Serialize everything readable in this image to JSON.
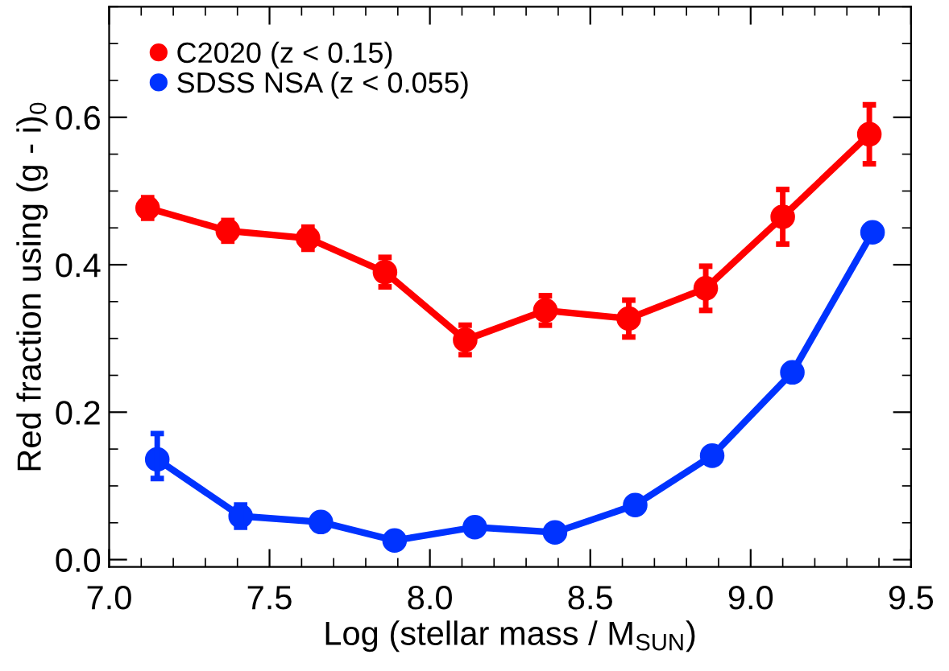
{
  "chart_data": {
    "type": "line",
    "xlabel": "Log (stellar mass / M$_{SUN}$)",
    "ylabel": "Red fraction using (g - i)$_{0}$",
    "xlim": [
      7.0,
      9.5
    ],
    "xticks": [
      {
        "value": 7.0,
        "label": "7.0"
      },
      7.5,
      {
        "value": 8.0,
        "label": "8.0"
      },
      8.5,
      {
        "value": 9.0,
        "label": "9.0"
      },
      9.5
    ],
    "ylim": [
      -0.01,
      0.75
    ],
    "yticks": [
      {
        "value": 0.0,
        "label": "0.0"
      },
      0.2,
      0.4,
      0.6
    ],
    "grid": false,
    "legend": "top left",
    "marker": "circle",
    "line_style": "solid",
    "series": [
      {
        "name": "C2020 (z < 0.15)",
        "color": "#ff0000",
        "x": [
          7.12,
          7.37,
          7.62,
          7.86,
          8.11,
          8.36,
          8.62,
          8.86,
          9.1,
          9.37
        ],
        "values": [
          0.477,
          0.446,
          0.436,
          0.39,
          0.298,
          0.338,
          0.327,
          0.368,
          0.465,
          0.577
        ],
        "errors": [
          0.014,
          0.014,
          0.015,
          0.02,
          0.02,
          0.02,
          0.025,
          0.03,
          0.037,
          0.04
        ]
      },
      {
        "name": "SDSS NSA (z < 0.055)",
        "color": "#0033ff",
        "x": [
          7.15,
          7.41,
          7.66,
          7.89,
          8.14,
          8.39,
          8.64,
          8.88,
          9.13,
          9.38
        ],
        "values": [
          0.136,
          0.059,
          0.051,
          0.026,
          0.044,
          0.037,
          0.074,
          0.141,
          0.254,
          0.444
        ],
        "errors": [
          [
            0.11,
            0.171
          ],
          0.015,
          null,
          null,
          null,
          null,
          null,
          null,
          null,
          null
        ]
      }
    ]
  }
}
